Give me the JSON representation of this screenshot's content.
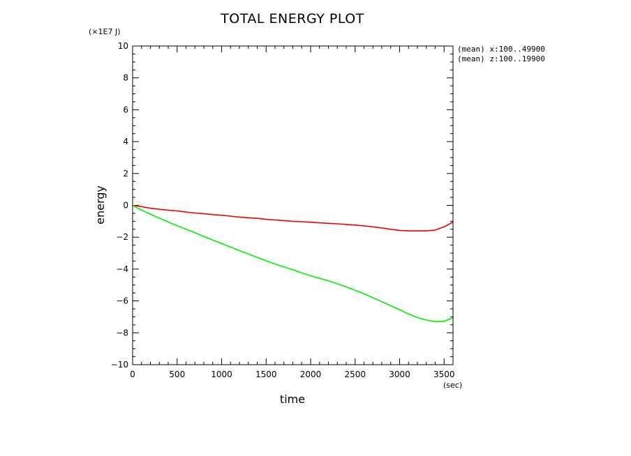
{
  "chart_data": {
    "type": "line",
    "title": "TOTAL ENERGY PLOT",
    "xlabel": "time",
    "ylabel": "energy",
    "x_unit": "(sec)",
    "y_unit": "(×1E7 J)",
    "xlim": [
      0,
      3600
    ],
    "ylim": [
      -10,
      10
    ],
    "x_ticks": [
      0,
      500,
      1000,
      1500,
      2000,
      2500,
      3000,
      3500
    ],
    "y_ticks": [
      -10,
      -8,
      -6,
      -4,
      -2,
      0,
      2,
      4,
      6,
      8,
      10
    ],
    "grid": false,
    "annotations": [
      "(mean) x:100..49900",
      "(mean) z:100..19900"
    ],
    "series": [
      {
        "color": "#ee0000",
        "x": [
          0,
          100,
          200,
          300,
          400,
          500,
          600,
          700,
          800,
          900,
          1000,
          1100,
          1200,
          1300,
          1400,
          1500,
          1600,
          1700,
          1800,
          1900,
          2000,
          2100,
          2200,
          2300,
          2400,
          2500,
          2600,
          2700,
          2800,
          2900,
          3000,
          3100,
          3200,
          3300,
          3400,
          3500,
          3600
        ],
        "y": [
          0,
          -0.08,
          -0.18,
          -0.25,
          -0.3,
          -0.35,
          -0.42,
          -0.48,
          -0.52,
          -0.58,
          -0.62,
          -0.68,
          -0.74,
          -0.78,
          -0.82,
          -0.88,
          -0.92,
          -0.96,
          -1.0,
          -1.03,
          -1.06,
          -1.1,
          -1.13,
          -1.16,
          -1.2,
          -1.24,
          -1.29,
          -1.35,
          -1.42,
          -1.5,
          -1.57,
          -1.6,
          -1.6,
          -1.6,
          -1.55,
          -1.35,
          -1.05
        ]
      },
      {
        "color": "#00ee00",
        "x": [
          0,
          100,
          200,
          300,
          400,
          500,
          600,
          700,
          800,
          900,
          1000,
          1100,
          1200,
          1300,
          1400,
          1500,
          1600,
          1700,
          1800,
          1900,
          2000,
          2100,
          2200,
          2300,
          2400,
          2500,
          2600,
          2700,
          2800,
          2900,
          3000,
          3100,
          3200,
          3300,
          3400,
          3500,
          3600
        ],
        "y": [
          0,
          -0.3,
          -0.55,
          -0.8,
          -1.05,
          -1.28,
          -1.5,
          -1.72,
          -1.95,
          -2.18,
          -2.4,
          -2.62,
          -2.84,
          -3.05,
          -3.27,
          -3.48,
          -3.68,
          -3.86,
          -4.04,
          -4.24,
          -4.42,
          -4.58,
          -4.74,
          -4.92,
          -5.12,
          -5.33,
          -5.55,
          -5.8,
          -6.05,
          -6.3,
          -6.56,
          -6.82,
          -7.04,
          -7.2,
          -7.3,
          -7.28,
          -7.05
        ]
      }
    ]
  }
}
